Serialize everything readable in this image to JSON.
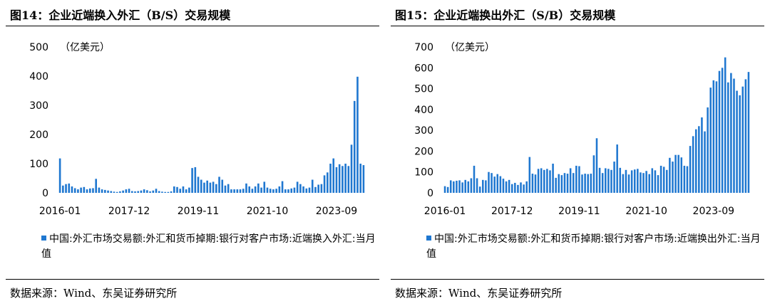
{
  "colors": {
    "bar": "#1f77d0",
    "text": "#000000",
    "rule": "#000000"
  },
  "source_text": "数据来源：Wind、东吴证券研究所",
  "chart_data": [
    {
      "title": "图14：企业近端换入外汇（B/S）交易规模",
      "type": "bar",
      "unit": "（亿美元）",
      "ylim": [
        0,
        500
      ],
      "yticks": [
        0,
        100,
        200,
        300,
        400,
        500
      ],
      "x_tick_labels": [
        "2016-01",
        "2017-12",
        "2019-11",
        "2021-10",
        "2023-09"
      ],
      "grid": false,
      "legend_position": "bottom",
      "series": [
        {
          "name": "中国:外汇市场交易额:外汇和货币掉期:银行对客户市场:近端换入外汇:当月值",
          "values": [
            118,
            25,
            30,
            32,
            22,
            16,
            12,
            18,
            20,
            12,
            15,
            16,
            48,
            18,
            12,
            10,
            8,
            6,
            4,
            3,
            5,
            8,
            12,
            14,
            6,
            5,
            6,
            8,
            12,
            9,
            5,
            8,
            14,
            6,
            4,
            3,
            3,
            5,
            22,
            20,
            14,
            22,
            12,
            18,
            85,
            88,
            55,
            45,
            35,
            42,
            35,
            38,
            30,
            55,
            45,
            25,
            30,
            12,
            12,
            12,
            12,
            14,
            32,
            22,
            14,
            22,
            32,
            18,
            38,
            18,
            14,
            12,
            14,
            22,
            40,
            12,
            12,
            15,
            18,
            38,
            30,
            22,
            15,
            18,
            45,
            20,
            28,
            30,
            60,
            70,
            100,
            118,
            88,
            98,
            92,
            100,
            92,
            165,
            315,
            398,
            100,
            95
          ]
        }
      ]
    },
    {
      "title": "图15：企业近端换出外汇（S/B）交易规模",
      "type": "bar",
      "unit": "（亿美元）",
      "ylim": [
        0,
        700
      ],
      "yticks": [
        0,
        100,
        200,
        300,
        400,
        500,
        600,
        700
      ],
      "x_tick_labels": [
        "2016-01",
        "2017-12",
        "2019-11",
        "2021-10",
        "2023-09"
      ],
      "grid": false,
      "legend_position": "bottom",
      "series": [
        {
          "name": "中国:外汇市场交易额:外汇和货币掉期:银行对客户市场:近端换出外汇:当月值",
          "values": [
            32,
            28,
            60,
            55,
            58,
            60,
            50,
            62,
            55,
            70,
            130,
            70,
            30,
            62,
            60,
            100,
            95,
            78,
            90,
            80,
            68,
            55,
            62,
            42,
            48,
            38,
            50,
            40,
            55,
            172,
            92,
            88,
            115,
            118,
            110,
            115,
            108,
            140,
            72,
            90,
            85,
            95,
            92,
            118,
            95,
            130,
            128,
            88,
            92,
            90,
            92,
            180,
            262,
            120,
            95,
            118,
            115,
            110,
            150,
            232,
            120,
            90,
            110,
            88,
            108,
            112,
            115,
            98,
            95,
            105,
            90,
            118,
            108,
            85,
            130,
            125,
            110,
            168,
            150,
            182,
            182,
            170,
            130,
            128,
            225,
            272,
            305,
            320,
            362,
            295,
            410,
            505,
            540,
            535,
            585,
            600,
            650,
            530,
            575,
            548,
            490,
            468,
            510,
            545,
            580
          ]
        }
      ]
    }
  ]
}
